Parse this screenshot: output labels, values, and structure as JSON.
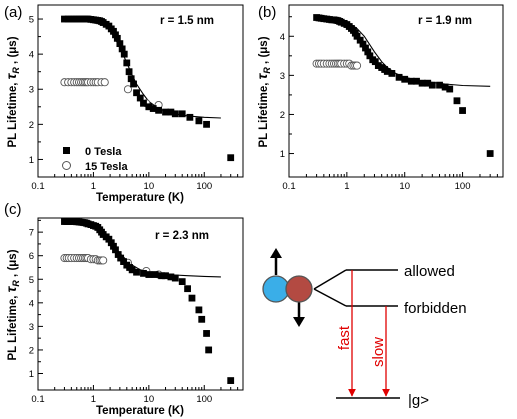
{
  "panels": [
    {
      "label": "(a)",
      "annotation": "r = 1.5 nm",
      "xlabel": "Temperature (K)",
      "ylabel_main": "PL Lifetime, ",
      "ylabel_sym": "τ",
      "ylabel_sub": "R",
      "ylabel_unit": " , (μs)",
      "xticks": [
        "0.1",
        "1",
        "10",
        "100"
      ],
      "yticks": [
        "1",
        "2",
        "3",
        "4",
        "5"
      ],
      "legend": [
        {
          "label": "0 Tesla",
          "marker": "filled-square"
        },
        {
          "label": "15 Tesla",
          "marker": "open-circle"
        }
      ]
    },
    {
      "label": "(b)",
      "annotation": "r = 1.9 nm",
      "xlabel": "Temperature (K)",
      "ylabel_main": "PL Lifetime, ",
      "ylabel_sym": "τ",
      "ylabel_sub": "R",
      "ylabel_unit": " , (μs)",
      "xticks": [
        "0.1",
        "1",
        "10",
        "100"
      ],
      "yticks": [
        "1",
        "2",
        "3",
        "4"
      ]
    },
    {
      "label": "(c)",
      "annotation": "r = 2.3 nm",
      "xlabel": "Temperature (K)",
      "ylabel_main": "PL Lifetime, ",
      "ylabel_sym": "τ",
      "ylabel_sub": "R",
      "ylabel_unit": " , (μs)",
      "xticks": [
        "0.1",
        "1",
        "10",
        "100"
      ],
      "yticks": [
        "1",
        "2",
        "3",
        "4",
        "5",
        "6",
        "7"
      ]
    }
  ],
  "diagram": {
    "upper_level": "allowed",
    "lower_level": "forbidden",
    "ground_state": "|g>",
    "fast_label": "fast",
    "slow_label": "slow",
    "arrow_color": "#e00000",
    "particle_colors": [
      "#3aaee8",
      "#b34a42"
    ]
  },
  "chart_data": [
    {
      "type": "scatter",
      "panel": "(a)",
      "x_scale": "log",
      "xlim": [
        0.1,
        500
      ],
      "ylim": [
        0.5,
        5.4
      ],
      "series": [
        {
          "name": "0 Tesla",
          "marker": "filled-square",
          "x": [
            0.3,
            0.35,
            0.4,
            0.45,
            0.5,
            0.55,
            0.6,
            0.65,
            0.7,
            0.75,
            0.8,
            0.9,
            1.0,
            1.1,
            1.2,
            1.3,
            1.4,
            1.5,
            1.7,
            1.9,
            2.1,
            2.3,
            2.5,
            2.7,
            3.0,
            3.3,
            3.6,
            4.0,
            4.4,
            4.8,
            5.3,
            6,
            7,
            8,
            10,
            12,
            15,
            20,
            25,
            30,
            40,
            55,
            80,
            110,
            300
          ],
          "y": [
            5.0,
            5.0,
            5.0,
            5.0,
            5.0,
            5.0,
            5.0,
            5.0,
            5.0,
            5.0,
            5.0,
            4.99,
            4.98,
            4.97,
            4.96,
            4.95,
            4.93,
            4.9,
            4.85,
            4.8,
            4.72,
            4.65,
            4.55,
            4.45,
            4.3,
            4.15,
            4.0,
            3.75,
            3.5,
            3.3,
            3.15,
            2.9,
            2.75,
            2.6,
            2.5,
            2.45,
            2.4,
            2.35,
            2.35,
            2.3,
            2.3,
            2.2,
            2.1,
            2.0,
            1.05
          ]
        },
        {
          "name": "15 Tesla",
          "marker": "open-circle",
          "x": [
            0.3,
            0.35,
            0.4,
            0.45,
            0.5,
            0.55,
            0.6,
            0.65,
            0.7,
            0.75,
            0.8,
            0.9,
            1.0,
            1.1,
            1.2,
            1.4,
            1.6,
            4.2,
            9,
            15
          ],
          "y": [
            3.2,
            3.2,
            3.2,
            3.2,
            3.2,
            3.2,
            3.2,
            3.2,
            3.2,
            3.2,
            3.2,
            3.2,
            3.2,
            3.2,
            3.2,
            3.2,
            3.2,
            3.0,
            2.6,
            2.55
          ]
        },
        {
          "name": "",
          "type": "line",
          "x": [
            0.28,
            0.5,
            1,
            1.5,
            2,
            3,
            4,
            5,
            6,
            8,
            10,
            15,
            20,
            30,
            50,
            100,
            200
          ],
          "y": [
            5.0,
            5.0,
            4.97,
            4.85,
            4.68,
            4.2,
            3.75,
            3.4,
            3.15,
            2.85,
            2.65,
            2.45,
            2.37,
            2.3,
            2.24,
            2.2,
            2.18
          ]
        }
      ]
    },
    {
      "type": "scatter",
      "panel": "(b)",
      "x_scale": "log",
      "xlim": [
        0.1,
        500
      ],
      "ylim": [
        0.4,
        4.8
      ],
      "series": [
        {
          "name": "0 Tesla",
          "marker": "filled-square",
          "x": [
            0.3,
            0.33,
            0.36,
            0.4,
            0.45,
            0.5,
            0.55,
            0.6,
            0.65,
            0.7,
            0.75,
            0.8,
            0.9,
            1.0,
            1.1,
            1.2,
            1.3,
            1.4,
            1.5,
            1.7,
            1.9,
            2.1,
            2.3,
            2.5,
            2.8,
            3.1,
            3.5,
            4.0,
            4.5,
            5,
            6,
            8,
            10,
            13,
            16,
            20,
            25,
            30,
            40,
            50,
            60,
            80,
            100,
            300
          ],
          "y": [
            4.48,
            4.47,
            4.46,
            4.45,
            4.44,
            4.43,
            4.42,
            4.42,
            4.41,
            4.4,
            4.38,
            4.36,
            4.33,
            4.3,
            4.25,
            4.2,
            4.15,
            4.08,
            4.0,
            3.9,
            3.8,
            3.7,
            3.6,
            3.5,
            3.4,
            3.35,
            3.25,
            3.2,
            3.15,
            3.1,
            3.05,
            2.95,
            2.9,
            2.85,
            2.85,
            2.8,
            2.8,
            2.75,
            2.75,
            2.7,
            2.65,
            2.35,
            2.1,
            1.0
          ]
        },
        {
          "name": "15 Tesla",
          "marker": "open-circle",
          "x": [
            0.3,
            0.33,
            0.36,
            0.4,
            0.45,
            0.5,
            0.55,
            0.6,
            0.65,
            0.7,
            0.75,
            0.8,
            0.9,
            1.0,
            1.1,
            1.2,
            1.3,
            1.4,
            1.5
          ],
          "y": [
            3.3,
            3.3,
            3.3,
            3.3,
            3.3,
            3.3,
            3.3,
            3.3,
            3.3,
            3.3,
            3.3,
            3.3,
            3.3,
            3.3,
            3.3,
            3.25,
            3.25,
            3.25,
            3.25
          ]
        },
        {
          "name": "",
          "type": "line",
          "x": [
            0.28,
            0.5,
            1,
            1.5,
            2,
            3,
            4,
            5,
            7,
            10,
            20,
            50,
            100,
            300
          ],
          "y": [
            4.47,
            4.46,
            4.38,
            4.2,
            4.0,
            3.6,
            3.35,
            3.2,
            3.05,
            2.95,
            2.85,
            2.78,
            2.74,
            2.72
          ]
        }
      ]
    },
    {
      "type": "scatter",
      "panel": "(c)",
      "x_scale": "log",
      "xlim": [
        0.1,
        500
      ],
      "ylim": [
        0.3,
        7.6
      ],
      "series": [
        {
          "name": "0 Tesla",
          "marker": "filled-square",
          "x": [
            0.3,
            0.33,
            0.36,
            0.4,
            0.45,
            0.5,
            0.55,
            0.6,
            0.65,
            0.7,
            0.75,
            0.8,
            0.9,
            1.0,
            1.1,
            1.2,
            1.3,
            1.4,
            1.5,
            1.7,
            1.9,
            2.1,
            2.3,
            2.5,
            2.8,
            3.1,
            3.5,
            4.0,
            4.5,
            5,
            6,
            8,
            10,
            13,
            17,
            20,
            25,
            30,
            40,
            50,
            60,
            80,
            90,
            110,
            120,
            300
          ],
          "y": [
            7.45,
            7.45,
            7.45,
            7.45,
            7.45,
            7.44,
            7.43,
            7.42,
            7.41,
            7.4,
            7.38,
            7.35,
            7.32,
            7.28,
            7.25,
            7.2,
            7.1,
            7.0,
            6.9,
            6.8,
            6.7,
            6.55,
            6.4,
            6.25,
            6.05,
            5.9,
            5.75,
            5.6,
            5.5,
            5.4,
            5.3,
            5.25,
            5.2,
            5.2,
            5.15,
            5.15,
            5.1,
            5.05,
            4.9,
            4.6,
            4.2,
            3.7,
            3.3,
            2.7,
            2.0,
            0.7
          ]
        },
        {
          "name": "15 Tesla",
          "marker": "open-circle",
          "x": [
            0.3,
            0.33,
            0.36,
            0.4,
            0.45,
            0.5,
            0.55,
            0.6,
            0.65,
            0.7,
            0.75,
            0.8,
            0.9,
            1.0,
            1.1,
            1.2,
            1.3,
            1.4,
            1.5,
            4.2,
            9,
            15
          ],
          "y": [
            5.9,
            5.9,
            5.9,
            5.9,
            5.9,
            5.9,
            5.9,
            5.9,
            5.9,
            5.9,
            5.9,
            5.9,
            5.85,
            5.85,
            5.85,
            5.8,
            5.8,
            5.8,
            5.8,
            5.7,
            5.35,
            5.2
          ]
        },
        {
          "name": "",
          "type": "line",
          "x": [
            0.28,
            0.5,
            1,
            1.5,
            2,
            3,
            4,
            5,
            7,
            10,
            20,
            50,
            100,
            200
          ],
          "y": [
            7.45,
            7.44,
            7.3,
            7.0,
            6.65,
            6.1,
            5.8,
            5.6,
            5.4,
            5.3,
            5.2,
            5.15,
            5.12,
            5.1
          ]
        }
      ]
    }
  ]
}
